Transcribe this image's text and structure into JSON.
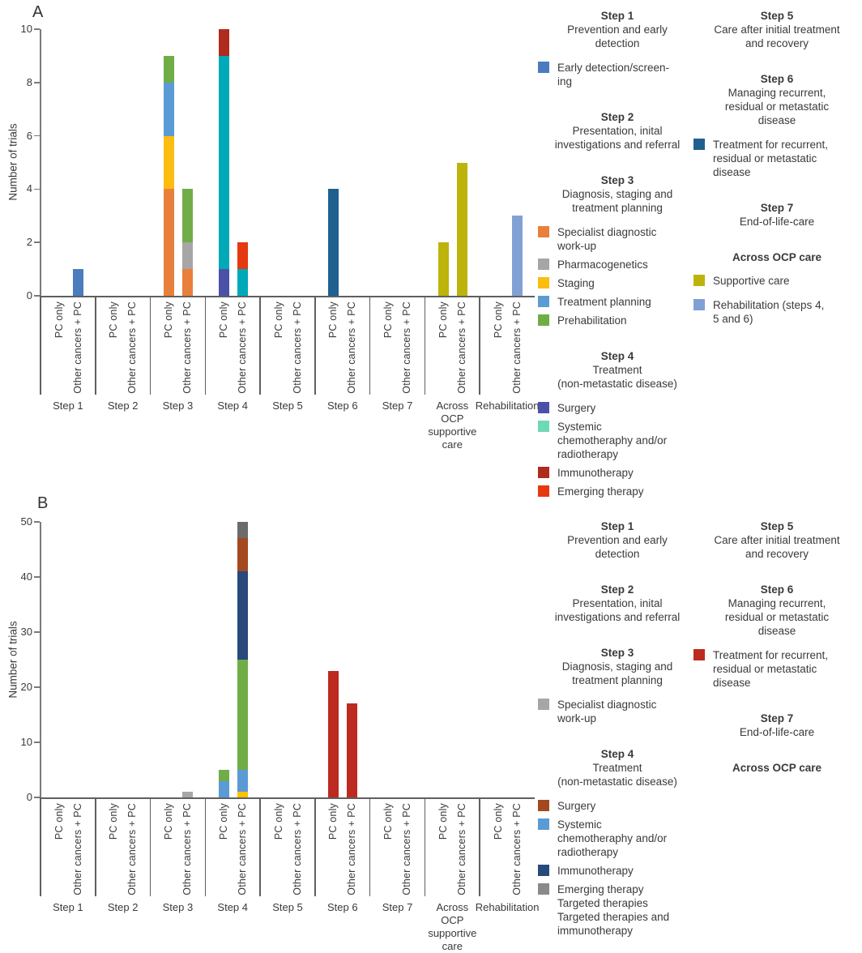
{
  "panel_labels": [
    "A",
    "B"
  ],
  "y_axis_label": "Number of trials",
  "chart_data": [
    {
      "type": "bar",
      "stacked": true,
      "panel": "A",
      "title": "",
      "xlabel": "",
      "ylabel": "Number of trials",
      "ylim": [
        0,
        10
      ],
      "yticks": [
        0,
        2,
        4,
        6,
        8,
        10
      ],
      "grid": false,
      "legend_position": "right",
      "bar_labels": [
        "PC only",
        "Other cancers + PC"
      ],
      "categories": [
        "Step 1",
        "Step 2",
        "Step 3",
        "Step 4",
        "Step 5",
        "Step 6",
        "Step 7",
        "Across OCP supportive care",
        "Rehabilitation"
      ],
      "category_labels": [
        "Step 1",
        "Step 2",
        "Step 3",
        "Step 4",
        "Step 5",
        "Step 6",
        "Step 7",
        "Across\nOCP\nsupportive\ncare",
        "Rehabilitation"
      ],
      "groups": [
        {
          "category": "Step 1",
          "bars": [
            {
              "label": "PC only",
              "segments": []
            },
            {
              "label": "Other cancers + PC",
              "segments": [
                {
                  "series": "Early detection/screening",
                  "value": 1,
                  "color": "#4A7CBE"
                }
              ]
            }
          ]
        },
        {
          "category": "Step 2",
          "bars": [
            {
              "label": "PC only",
              "segments": []
            },
            {
              "label": "Other cancers + PC",
              "segments": []
            }
          ]
        },
        {
          "category": "Step 3",
          "bars": [
            {
              "label": "PC only",
              "segments": [
                {
                  "series": "Specialist diagnostic work-up",
                  "value": 4,
                  "color": "#E8803B"
                },
                {
                  "series": "Staging",
                  "value": 2,
                  "color": "#FBBD10"
                },
                {
                  "series": "Treatment planning",
                  "value": 2,
                  "color": "#5B9BD5"
                },
                {
                  "series": "Prehabilitation",
                  "value": 1,
                  "color": "#70AD47"
                }
              ]
            },
            {
              "label": "Other cancers + PC",
              "segments": [
                {
                  "series": "Specialist diagnostic work-up",
                  "value": 1,
                  "color": "#E8803B"
                },
                {
                  "series": "Pharmacogenetics",
                  "value": 1,
                  "color": "#A6A6A6"
                },
                {
                  "series": "Prehabilitation",
                  "value": 2,
                  "color": "#70AD47"
                }
              ]
            }
          ]
        },
        {
          "category": "Step 4",
          "bars": [
            {
              "label": "PC only",
              "segments": [
                {
                  "series": "Surgery",
                  "value": 1,
                  "color": "#4B51A8"
                },
                {
                  "series": "Systemic chemotheraphy and/or radiotherapy",
                  "value": 8,
                  "color": "#00A9B7"
                },
                {
                  "series": "Immunotherapy",
                  "value": 1,
                  "color": "#AF2B1E"
                }
              ]
            },
            {
              "label": "Other cancers + PC",
              "segments": [
                {
                  "series": "Systemic chemotheraphy and/or radiotherapy",
                  "value": 1,
                  "color": "#00A9B7"
                },
                {
                  "series": "Emerging therapy",
                  "value": 1,
                  "color": "#E5390F"
                }
              ]
            }
          ]
        },
        {
          "category": "Step 5",
          "bars": [
            {
              "label": "PC only",
              "segments": []
            },
            {
              "label": "Other cancers + PC",
              "segments": []
            }
          ]
        },
        {
          "category": "Step 6",
          "bars": [
            {
              "label": "PC only",
              "segments": [
                {
                  "series": "Treatment for recurrent, residual or metastatic disease",
                  "value": 4,
                  "color": "#1F608F"
                }
              ]
            },
            {
              "label": "Other cancers + PC",
              "segments": []
            }
          ]
        },
        {
          "category": "Step 7",
          "bars": [
            {
              "label": "PC only",
              "segments": []
            },
            {
              "label": "Other cancers + PC",
              "segments": []
            }
          ]
        },
        {
          "category": "Across OCP supportive care",
          "bars": [
            {
              "label": "PC only",
              "segments": [
                {
                  "series": "Supportive care",
                  "value": 2,
                  "color": "#BDB40B"
                }
              ]
            },
            {
              "label": "Other cancers + PC",
              "segments": [
                {
                  "series": "Supportive care",
                  "value": 5,
                  "color": "#BDB40B"
                }
              ]
            }
          ]
        },
        {
          "category": "Rehabilitation",
          "bars": [
            {
              "label": "PC only",
              "segments": []
            },
            {
              "label": "Other cancers + PC",
              "segments": [
                {
                  "series": "Rehabilitation (steps 4, 5 and 6)",
                  "value": 3,
                  "color": "#81A1D4"
                }
              ]
            }
          ]
        }
      ]
    },
    {
      "type": "bar",
      "stacked": true,
      "panel": "B",
      "title": "",
      "xlabel": "",
      "ylabel": "Number of trials",
      "ylim": [
        0,
        50
      ],
      "yticks": [
        0,
        10,
        20,
        30,
        40,
        50
      ],
      "grid": false,
      "legend_position": "right",
      "bar_labels": [
        "PC only",
        "Other cancers + PC"
      ],
      "categories": [
        "Step 1",
        "Step 2",
        "Step 3",
        "Step 4",
        "Step 5",
        "Step 6",
        "Step 7",
        "Across OCP supportive care",
        "Rehabilitation"
      ],
      "category_labels": [
        "Step 1",
        "Step 2",
        "Step 3",
        "Step 4",
        "Step 5",
        "Step 6",
        "Step 7",
        "Across\nOCP\nsupportive\ncare",
        "Rehabilitation"
      ],
      "groups": [
        {
          "category": "Step 1",
          "bars": [
            {
              "label": "PC only",
              "segments": []
            },
            {
              "label": "Other cancers + PC",
              "segments": []
            }
          ]
        },
        {
          "category": "Step 2",
          "bars": [
            {
              "label": "PC only",
              "segments": []
            },
            {
              "label": "Other cancers + PC",
              "segments": []
            }
          ]
        },
        {
          "category": "Step 3",
          "bars": [
            {
              "label": "PC only",
              "segments": []
            },
            {
              "label": "Other cancers + PC",
              "segments": [
                {
                  "series": "Specialist diagnostic work-up",
                  "value": 1,
                  "color": "#A6A6A6"
                }
              ]
            }
          ]
        },
        {
          "category": "Step 4",
          "bars": [
            {
              "label": "PC only",
              "segments": [
                {
                  "series": "Systemic chemotheraphy and/or radiotherapy",
                  "value": 3,
                  "color": "#5B9BD5"
                },
                {
                  "series": "Targeted therapies",
                  "value": 2,
                  "color": "#70AD47"
                }
              ]
            },
            {
              "label": "Other cancers + PC",
              "segments": [
                {
                  "series": "Targeted therapies and immunotherapy",
                  "value": 1,
                  "color": "#FFC000"
                },
                {
                  "series": "Systemic chemotheraphy and/or radiotherapy",
                  "value": 4,
                  "color": "#5B9BD5"
                },
                {
                  "series": "Targeted therapies",
                  "value": 20,
                  "color": "#70AD47"
                },
                {
                  "series": "Immunotherapy",
                  "value": 16,
                  "color": "#27497B"
                },
                {
                  "series": "Surgery",
                  "value": 6,
                  "color": "#A4481F"
                },
                {
                  "series": "Emerging therapy",
                  "value": 3,
                  "color": "#6B6B6B"
                }
              ]
            }
          ]
        },
        {
          "category": "Step 5",
          "bars": [
            {
              "label": "PC only",
              "segments": []
            },
            {
              "label": "Other cancers + PC",
              "segments": []
            }
          ]
        },
        {
          "category": "Step 6",
          "bars": [
            {
              "label": "PC only",
              "segments": [
                {
                  "series": "Treatment for recurrent, residual or metastatic disease",
                  "value": 23,
                  "color": "#BD2A20"
                }
              ]
            },
            {
              "label": "Other cancers + PC",
              "segments": [
                {
                  "series": "Treatment for recurrent, residual or metastatic disease",
                  "value": 17,
                  "color": "#BD2A20"
                }
              ]
            }
          ]
        },
        {
          "category": "Step 7",
          "bars": [
            {
              "label": "PC only",
              "segments": []
            },
            {
              "label": "Other cancers + PC",
              "segments": []
            }
          ]
        },
        {
          "category": "Across OCP supportive care",
          "bars": [
            {
              "label": "PC only",
              "segments": []
            },
            {
              "label": "Other cancers + PC",
              "segments": []
            }
          ]
        },
        {
          "category": "Rehabilitation",
          "bars": [
            {
              "label": "PC only",
              "segments": []
            },
            {
              "label": "Other cancers + PC",
              "segments": []
            }
          ]
        }
      ]
    }
  ],
  "legends": [
    {
      "columns": [
        [
          {
            "heading": "Step 1",
            "subtitle": "Prevention and early\ndetection"
          },
          {
            "items": [
              {
                "color": "#4A7CBE",
                "label": "Early detection/screen-\ning"
              }
            ]
          },
          {
            "heading": "Step 2",
            "subtitle": "Presentation, inital\ninvestigations and referral"
          },
          {
            "heading": "Step 3",
            "subtitle": "Diagnosis, staging and\ntreatment planning"
          },
          {
            "items": [
              {
                "color": "#E8803B",
                "label": "Specialist diagnostic\nwork-up"
              },
              {
                "color": "#A6A6A6",
                "label": "Pharmacogenetics"
              },
              {
                "color": "#FBBD10",
                "label": "Staging"
              },
              {
                "color": "#5B9BD5",
                "label": "Treatment planning"
              },
              {
                "color": "#70AD47",
                "label": "Prehabilitation"
              }
            ]
          },
          {
            "heading": "Step 4",
            "subtitle": "Treatment\n(non-metastatic disease)"
          },
          {
            "items": [
              {
                "color": "#4B51A8",
                "label": "Surgery"
              },
              {
                "color": "#6FD9B3",
                "label": "Systemic\nchemotheraphy and/or\nradiotherapy"
              },
              {
                "color": "#AF2B1E",
                "label": "Immunotherapy"
              },
              {
                "color": "#E5390F",
                "label": "Emerging therapy"
              }
            ]
          }
        ],
        [
          {
            "heading": "Step 5",
            "subtitle": "Care after initial treatment\nand recovery"
          },
          {
            "heading": "Step 6",
            "subtitle": "Managing recurrent,\nresidual or metastatic\ndisease"
          },
          {
            "items": [
              {
                "color": "#1F608F",
                "label": "Treatment for recurrent,\nresidual or metastatic\ndisease"
              }
            ]
          },
          {
            "heading": "Step 7",
            "subtitle": "End-of-life-care"
          },
          {
            "heading": "Across OCP care",
            "subtitle": ""
          },
          {
            "items": [
              {
                "color": "#BDB40B",
                "label": "Supportive care"
              }
            ]
          },
          {
            "items": [
              {
                "color": "#81A1D4",
                "label": "Rehabilitation (steps 4,\n5 and 6)"
              }
            ]
          }
        ]
      ]
    },
    {
      "columns": [
        [
          {
            "heading": "Step 1",
            "subtitle": "Prevention and early\ndetection"
          },
          {
            "heading": "Step 2",
            "subtitle": "Presentation, inital\ninvestigations and referral"
          },
          {
            "heading": "Step 3",
            "subtitle": "Diagnosis, staging and\ntreatment planning"
          },
          {
            "items": [
              {
                "color": "#A6A6A6",
                "label": "Specialist diagnostic\nwork-up"
              }
            ]
          },
          {
            "heading": "Step 4",
            "subtitle": "Treatment\n(non-metastatic disease)"
          },
          {
            "items": [
              {
                "color": "#A4481F",
                "label": "Surgery"
              },
              {
                "color": "#5B9BD5",
                "label": "Systemic\nchemotheraphy and/or\nradiotherapy"
              },
              {
                "color": "#27497B",
                "label": "Immunotherapy"
              },
              {
                "color": "#8A8A8A",
                "label": "Emerging therapy\nTargeted therapies\nTargeted therapies and\nimmunotherapy"
              }
            ]
          }
        ],
        [
          {
            "heading": "Step 5",
            "subtitle": "Care after initial treatment\nand recovery"
          },
          {
            "heading": "Step 6",
            "subtitle": "Managing recurrent,\nresidual or metastatic\ndisease"
          },
          {
            "items": [
              {
                "color": "#BD2A20",
                "label": "Treatment for recurrent,\nresidual or metastatic\ndisease"
              }
            ]
          },
          {
            "heading": "Step 7",
            "subtitle": "End-of-life-care"
          },
          {
            "heading": "Across OCP care",
            "subtitle": ""
          }
        ]
      ]
    }
  ]
}
